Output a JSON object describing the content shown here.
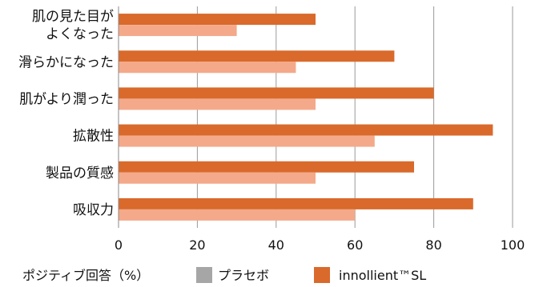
{
  "chart_data": {
    "type": "bar",
    "orientation": "horizontal",
    "categories": [
      [
        "肌の見た目が",
        "よくなった"
      ],
      [
        "滑らかになった"
      ],
      [
        "肌がより潤った"
      ],
      [
        "拡散性"
      ],
      [
        "製品の質感"
      ],
      [
        "吸収力"
      ]
    ],
    "series": [
      {
        "name": "innollient™SL",
        "color": "#d96a2c",
        "values": [
          50,
          70,
          80,
          95,
          75,
          90
        ]
      },
      {
        "name": "プラセボ",
        "color": "#f4a98a",
        "values": [
          30,
          45,
          50,
          65,
          50,
          60
        ]
      }
    ],
    "xlim": [
      0,
      100
    ],
    "xticks": [
      "0",
      "20",
      "40",
      "60",
      "80",
      "100"
    ],
    "grid": true,
    "legend": {
      "title": "ポジティブ回答（%）",
      "items": [
        {
          "label": "プラセボ",
          "swatch_color": "#a6a6a6"
        },
        {
          "label": "innollient™SL",
          "swatch_color": "#d96a2c"
        }
      ],
      "position": "bottom"
    }
  }
}
